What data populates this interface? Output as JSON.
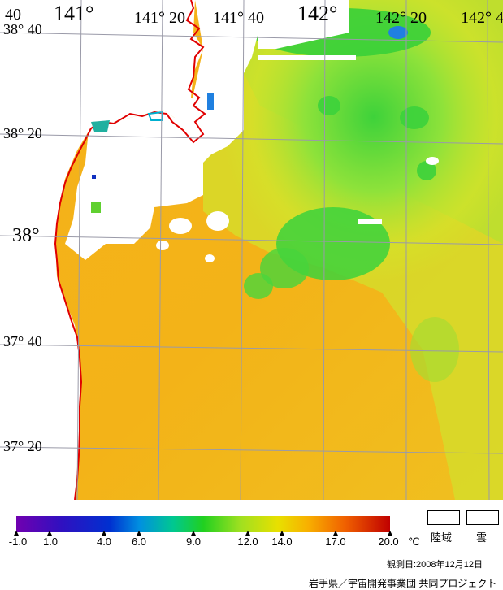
{
  "map": {
    "lon_labels": [
      "141°",
      "141° 20",
      "141° 40",
      "142°",
      "142° 20",
      "142° 4",
      "40"
    ],
    "lat_labels": [
      "38° 40",
      "38° 20",
      "38°",
      "37° 40",
      "37° 20"
    ]
  },
  "legend": {
    "ticks": [
      "-1.0",
      "1.0",
      "4.0",
      "6.0",
      "9.0",
      "12.0",
      "14.0",
      "17.0",
      "20.0"
    ],
    "unit": "℃",
    "land_label": "陸域",
    "cloud_label": "雲",
    "colors": {
      "cold": "#7a00b8",
      "blue": "#0020c8",
      "cyan": "#00b0d8",
      "green": "#00d000",
      "yellow": "#d8e000",
      "orange": "#f8a000",
      "red": "#c00000",
      "coast": "#e00000"
    }
  },
  "footer": {
    "date": "観測日:2008年12月12日",
    "credit": "岩手県／宇宙開発事業団 共同プロジェクト"
  }
}
